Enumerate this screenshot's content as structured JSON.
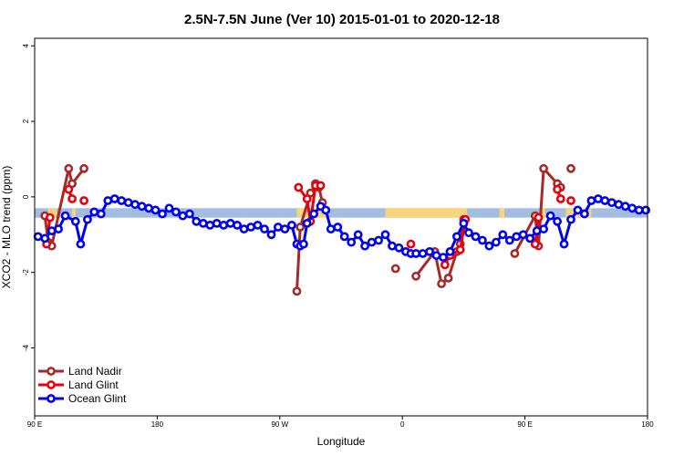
{
  "chart_data": {
    "type": "line",
    "title": "2.5N-7.5N June (Ver 10)   2015-01-01 to 2020-12-18",
    "xlabel": "Longitude",
    "ylabel": "XCO2 - MLO trend (ppm)",
    "xlim": [
      0,
      360
    ],
    "ylim": [
      -5.8,
      4.2
    ],
    "x_ticks": [
      {
        "value": 0,
        "label": "90 E"
      },
      {
        "value": 72,
        "label": "180"
      },
      {
        "value": 144,
        "label": "90 W"
      },
      {
        "value": 216,
        "label": "0"
      },
      {
        "value": 288,
        "label": "90 E"
      },
      {
        "value": 360,
        "label": "180"
      }
    ],
    "y_ticks": [
      {
        "value": 4,
        "label": "4"
      },
      {
        "value": 2,
        "label": "2"
      },
      {
        "value": 0,
        "label": "0"
      },
      {
        "value": -2,
        "label": "-2"
      },
      {
        "value": -4,
        "label": "-4"
      }
    ],
    "grid": false,
    "legend_position": "bottom-left",
    "band": {
      "ymin": -0.55,
      "ymax": -0.3,
      "color": "#a3bde0",
      "land_color": "#f7d57a",
      "land_ranges": [
        [
          8,
          13
        ],
        [
          22,
          24
        ],
        [
          154,
          172
        ],
        [
          206,
          254
        ],
        [
          273,
          276
        ],
        [
          297,
          300
        ],
        [
          312,
          327
        ]
      ]
    },
    "series": [
      {
        "name": "Land Nadir",
        "color": "#a52a2a",
        "x": [
          6,
          8,
          10,
          20,
          22,
          29,
          154,
          156,
          162,
          165,
          167,
          169,
          212,
          224,
          235,
          239,
          243,
          248,
          250,
          252,
          282,
          294,
          296,
          299,
          307,
          309,
          315
        ],
        "y": [
          -0.5,
          -1.2,
          -1.3,
          0.75,
          0.35,
          0.75,
          -2.5,
          -0.8,
          0.1,
          0.35,
          0.25,
          -0.15,
          -1.9,
          -2.1,
          -1.45,
          -2.3,
          -2.15,
          -1.45,
          -1.25,
          -0.6,
          -1.5,
          -0.5,
          -1.3,
          0.75,
          0.35,
          0.25,
          0.75
        ],
        "segments": [
          [
            0,
            3
          ],
          [
            3,
            5
          ],
          [
            6,
            11
          ],
          [
            13,
            19
          ],
          [
            20,
            25
          ]
        ]
      },
      {
        "name": "Land Glint",
        "color": "#e8000b",
        "x": [
          7,
          9,
          20,
          22,
          29,
          155,
          160,
          162,
          165,
          168,
          221,
          241,
          244,
          250,
          253,
          294,
          296,
          307,
          309,
          315
        ],
        "y": [
          -1.25,
          -0.55,
          0.2,
          -0.05,
          -0.1,
          0.25,
          -0.05,
          -0.65,
          0.3,
          0.3,
          -1.25,
          -1.8,
          -1.55,
          -1.4,
          -0.6,
          -1.25,
          -0.55,
          0.2,
          -0.05,
          -0.1
        ],
        "segments": [
          [
            0,
            1
          ],
          [
            2,
            3
          ],
          [
            5,
            9
          ],
          [
            11,
            14
          ],
          [
            15,
            16
          ],
          [
            17,
            18
          ]
        ]
      },
      {
        "name": "Ocean Glint",
        "color": "#0000ee",
        "x": [
          2,
          6,
          10,
          14,
          18,
          24,
          27,
          31,
          35,
          39,
          43,
          47,
          51,
          55,
          59,
          63,
          67,
          71,
          75,
          79,
          83,
          87,
          91,
          95,
          99,
          103,
          107,
          111,
          115,
          119,
          123,
          127,
          131,
          135,
          139,
          143,
          147,
          151,
          154,
          156,
          158,
          160,
          164,
          168,
          171,
          174,
          178,
          182,
          186,
          190,
          194,
          198,
          202,
          206,
          210,
          214,
          218,
          221,
          224,
          228,
          232,
          236,
          240,
          244,
          248,
          252,
          255,
          259,
          263,
          267,
          271,
          275,
          279,
          283,
          287,
          291,
          295,
          299,
          303,
          307,
          311,
          315,
          319,
          323,
          327,
          331,
          335,
          339,
          343,
          347,
          351,
          355,
          359
        ],
        "y": [
          -1.05,
          -1.1,
          -0.9,
          -0.85,
          -0.5,
          -0.65,
          -1.25,
          -0.6,
          -0.4,
          -0.45,
          -0.1,
          -0.05,
          -0.1,
          -0.15,
          -0.2,
          -0.25,
          -0.3,
          -0.35,
          -0.45,
          -0.3,
          -0.4,
          -0.5,
          -0.45,
          -0.65,
          -0.7,
          -0.75,
          -0.7,
          -0.75,
          -0.7,
          -0.75,
          -0.85,
          -0.8,
          -0.75,
          -0.85,
          -1.0,
          -0.8,
          -0.85,
          -0.75,
          -1.25,
          -1.3,
          -1.25,
          -0.7,
          -0.45,
          -0.25,
          -0.35,
          -0.85,
          -0.8,
          -1.05,
          -1.2,
          -1.0,
          -1.3,
          -1.2,
          -1.15,
          -1.0,
          -1.3,
          -1.35,
          -1.45,
          -1.5,
          -1.5,
          -1.5,
          -1.45,
          -1.55,
          -1.6,
          -1.45,
          -1.05,
          -0.7,
          -0.95,
          -1.05,
          -1.15,
          -1.3,
          -1.2,
          -1.0,
          -1.15,
          -1.05,
          -1.0,
          -1.1,
          -0.9,
          -0.85,
          -0.5,
          -0.65,
          -1.25,
          -0.6,
          -0.35,
          -0.45,
          -0.1,
          -0.05,
          -0.1,
          -0.15,
          -0.2,
          -0.25,
          -0.3,
          -0.35,
          -0.35
        ],
        "segments": [
          [
            0,
            92
          ]
        ]
      }
    ]
  }
}
